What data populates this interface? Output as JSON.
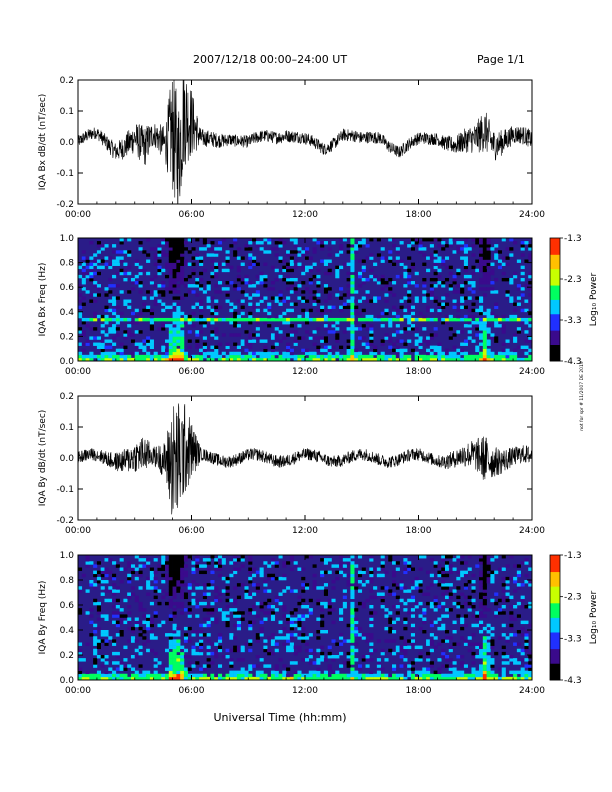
{
  "header": {
    "title": "2007/12/18  00:00–24:00 UT",
    "page": "Page 1/1"
  },
  "xlabel": "Universal Time (hh:mm)",
  "side_note": "not for spr # 11/2007 DE 2019",
  "colors": {
    "trace": "#000000",
    "spec_bg": "#2a1c88",
    "colorbar": [
      "#000000",
      "#3a0a8c",
      "#2030ff",
      "#00c8ff",
      "#00ff60",
      "#c8ff00",
      "#ffc000",
      "#ff3000",
      "#ff0000"
    ]
  },
  "chart_data": [
    {
      "type": "line",
      "panel": "bx-dbdt",
      "ylabel": "IQA Bx dB/dt (nT/sec)",
      "ylim": [
        -0.2,
        0.2
      ],
      "yticks": [
        "-0.2",
        "-0.1",
        "0.0",
        "0.1",
        "0.2"
      ],
      "xlim": [
        0,
        24
      ],
      "xticks": [
        "00:00",
        "06:00",
        "12:00",
        "18:00",
        "24:00"
      ],
      "series": [
        {
          "x": [
            0,
            1,
            2,
            3,
            3.5,
            4,
            4.6,
            5.0,
            5.3,
            5.6,
            6.5,
            8,
            9,
            10,
            11,
            12,
            13,
            14,
            15,
            16,
            17,
            18,
            19,
            20,
            21,
            21.5,
            22,
            23,
            24
          ],
          "y": [
            0.0,
            0.02,
            -0.02,
            0.01,
            -0.03,
            0.02,
            0.0,
            0.05,
            -0.05,
            0.1,
            0.0,
            0.02,
            -0.01,
            0.02,
            0.03,
            0.0,
            -0.02,
            0.03,
            0.0,
            0.02,
            -0.03,
            0.0,
            0.02,
            -0.01,
            0.0,
            0.04,
            0.0,
            0.02,
            0.0
          ],
          "amplitude": [
            0.02,
            0.02,
            0.03,
            0.05,
            0.07,
            0.04,
            0.06,
            0.2,
            0.2,
            0.18,
            0.03,
            0.02,
            0.02,
            0.02,
            0.02,
            0.02,
            0.02,
            0.02,
            0.02,
            0.02,
            0.02,
            0.02,
            0.02,
            0.03,
            0.05,
            0.07,
            0.05,
            0.03,
            0.03
          ]
        }
      ]
    },
    {
      "type": "heatmap",
      "panel": "bx-spectrogram",
      "ylabel": "IQA Bx Freq (Hz)",
      "ylim": [
        0.0,
        1.0
      ],
      "yticks": [
        "0.0",
        "0.2",
        "0.4",
        "0.6",
        "0.8",
        "1.0"
      ],
      "xlim": [
        0,
        24
      ],
      "xticks": [
        "00:00",
        "06:00",
        "12:00",
        "18:00",
        "24:00"
      ],
      "zlim": [
        -4.3,
        -1.3
      ],
      "colorbar_label": "Log₁₀ Power",
      "colorbar_ticks": [
        "-1.3",
        "-2.3",
        "-3.3",
        "-4.3"
      ],
      "features": {
        "line_freq": 0.33,
        "vertical_line_time": 14.5,
        "burst_times": [
          5.0,
          5.4,
          21.5
        ]
      }
    },
    {
      "type": "line",
      "panel": "by-dbdt",
      "ylabel": "IQA By dB/dt (nT/sec)",
      "ylim": [
        -0.2,
        0.2
      ],
      "yticks": [
        "-0.2",
        "-0.1",
        "0.0",
        "0.1",
        "0.2"
      ],
      "xlim": [
        0,
        24
      ],
      "xticks": [
        "00:00",
        "06:00",
        "12:00",
        "18:00",
        "24:00"
      ],
      "series": [
        {
          "x": [
            0,
            1,
            2,
            3,
            3.5,
            4,
            4.6,
            5.0,
            5.3,
            5.6,
            6.5,
            8,
            9,
            10,
            11,
            12,
            13,
            14,
            15,
            16,
            17,
            18,
            19,
            20,
            21,
            21.5,
            22,
            23,
            24
          ],
          "y": [
            0.0,
            0.0,
            0.0,
            0.0,
            0.0,
            0.0,
            0.0,
            0.0,
            0.0,
            0.03,
            0.0,
            0.0,
            0.0,
            0.0,
            0.0,
            0.0,
            0.0,
            0.0,
            0.0,
            0.0,
            0.0,
            0.0,
            0.0,
            0.0,
            0.0,
            0.0,
            0.0,
            0.0,
            0.0
          ],
          "amplitude": [
            0.02,
            0.02,
            0.03,
            0.05,
            0.06,
            0.03,
            0.06,
            0.2,
            0.2,
            0.16,
            0.02,
            0.02,
            0.02,
            0.02,
            0.02,
            0.02,
            0.02,
            0.02,
            0.02,
            0.02,
            0.02,
            0.02,
            0.02,
            0.03,
            0.05,
            0.08,
            0.05,
            0.03,
            0.03
          ]
        }
      ]
    },
    {
      "type": "heatmap",
      "panel": "by-spectrogram",
      "ylabel": "IQA By Freq (Hz)",
      "ylim": [
        0.0,
        1.0
      ],
      "yticks": [
        "0.0",
        "0.2",
        "0.4",
        "0.6",
        "0.8",
        "1.0"
      ],
      "xlim": [
        0,
        24
      ],
      "xticks": [
        "00:00",
        "06:00",
        "12:00",
        "18:00",
        "24:00"
      ],
      "zlim": [
        -4.3,
        -1.3
      ],
      "colorbar_label": "Log₁₀ Power",
      "colorbar_ticks": [
        "-1.3",
        "-2.3",
        "-3.3",
        "-4.3"
      ],
      "features": {
        "line_freq": 0.0,
        "vertical_line_time": 14.5,
        "burst_times": [
          5.0,
          5.4,
          21.5
        ]
      }
    }
  ]
}
